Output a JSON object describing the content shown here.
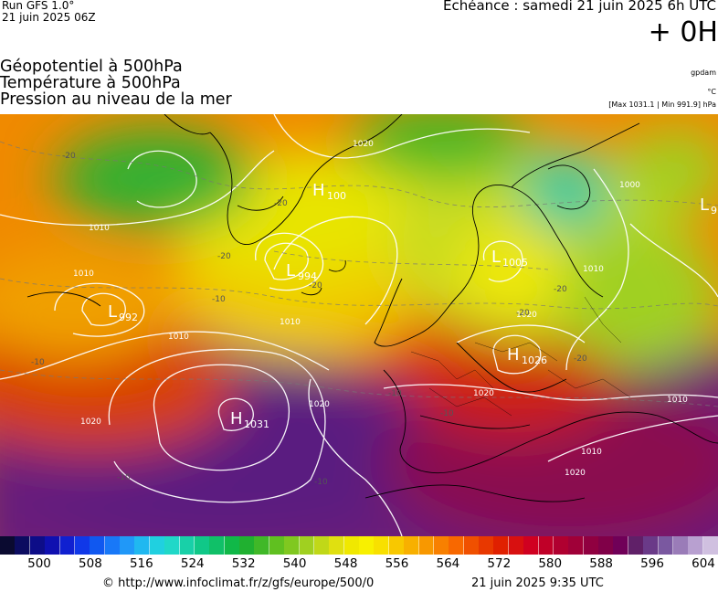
{
  "header": {
    "run_model": "Run GFS 1.0°",
    "run_date": "21 juin 2025 06Z",
    "echeance": "Echéance : samedi 21 juin 2025 6h UTC",
    "lead_time": "+ 0H"
  },
  "fields": [
    "Géopotentiel à 500hPa",
    "Température à 500hPa",
    "Pression au niveau de la mer"
  ],
  "units": {
    "geopotential": "gpdam",
    "temperature": "°C",
    "pressure_range": "[Max 1031.1 | Min 991.9] hPa"
  },
  "pressure_centers": [
    {
      "type": "H",
      "value": "1031"
    },
    {
      "type": "H",
      "value": "1026"
    },
    {
      "type": "H",
      "value": "100"
    },
    {
      "type": "L",
      "value": "994"
    },
    {
      "type": "L",
      "value": "992"
    },
    {
      "type": "L",
      "value": "1005"
    },
    {
      "type": "L",
      "value": "9"
    }
  ],
  "isobar_labels": [
    "1020",
    "1010",
    "1010",
    "1020",
    "1010",
    "1020",
    "1010",
    "1000",
    "1010",
    "1020",
    "1010",
    "1020",
    "1010",
    "1020"
  ],
  "temperature_labels": [
    "-20",
    "-20",
    "-20",
    "-20",
    "-10",
    "-10",
    "-10",
    "-10",
    "-10",
    "-20",
    "-20",
    "-20",
    "-10"
  ],
  "color_scale": {
    "labels": [
      "500",
      "508",
      "516",
      "524",
      "532",
      "540",
      "548",
      "556",
      "564",
      "572",
      "580",
      "588",
      "596",
      "604"
    ],
    "colors": [
      "#0a0a30",
      "#0c0c60",
      "#0d0d88",
      "#0f10b0",
      "#1020d0",
      "#1038e8",
      "#1058f0",
      "#1878f8",
      "#2098f8",
      "#20b8f0",
      "#20d0e0",
      "#20d8c8",
      "#18d0a8",
      "#10c888",
      "#10c068",
      "#10b848",
      "#20b030",
      "#40b828",
      "#60c020",
      "#80c820",
      "#a0d020",
      "#c0d818",
      "#e0e010",
      "#f0e800",
      "#f8f000",
      "#f8e000",
      "#f8c800",
      "#f8b000",
      "#f89800",
      "#f88000",
      "#f86800",
      "#f05000",
      "#e83800",
      "#e02000",
      "#d81010",
      "#d00020",
      "#c00028",
      "#b00030",
      "#a00038",
      "#900040",
      "#800048",
      "#700058",
      "#602068",
      "#6a3a88",
      "#7a58a0",
      "#9a7cb8",
      "#b8a0d0",
      "#d0c0e0"
    ]
  },
  "footer": {
    "credit": "© http://www.infoclimat.fr/z/gfs/europe/500/0",
    "generated": "21 juin 2025  9:35 UTC"
  }
}
